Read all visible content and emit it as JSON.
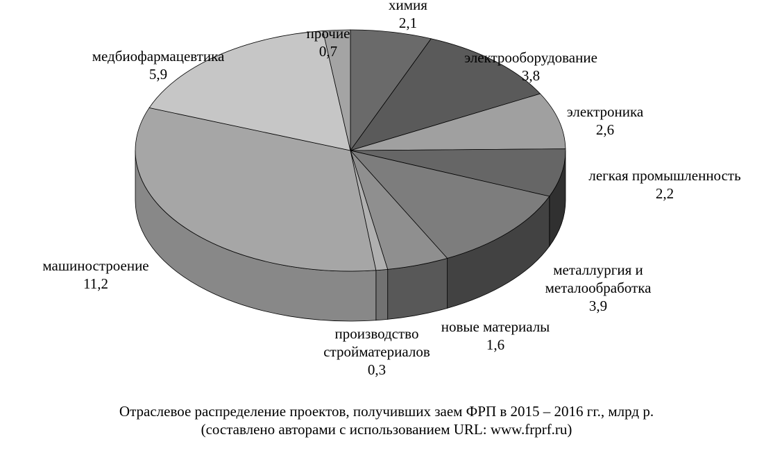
{
  "chart_data": {
    "type": "pie",
    "style": "3d",
    "unit": "млрд р.",
    "slices": [
      {
        "label": "химия",
        "value_text": "2,1",
        "value": 2.1,
        "color": "#6a6a6a"
      },
      {
        "label": "электрооборудование",
        "value_text": "3,8",
        "value": 3.8,
        "color": "#5a5a5a"
      },
      {
        "label": "электроника",
        "value_text": "2,6",
        "value": 2.6,
        "color": "#a0a0a0"
      },
      {
        "label": "легкая промышленность",
        "value_text": "2,2",
        "value": 2.2,
        "color": "#666666"
      },
      {
        "label": "металлургия и металообработка",
        "value_text": "3,9",
        "value": 3.9,
        "color": "#7d7d7d"
      },
      {
        "label": "новые материалы",
        "value_text": "1,6",
        "value": 1.6,
        "color": "#8f8f8f"
      },
      {
        "label": "производство строй­материалов",
        "value_text": "0,3",
        "value": 0.3,
        "color": "#b0b0b0"
      },
      {
        "label": "машиностроение",
        "value_text": "11,2",
        "value": 11.2,
        "color": "#a6a6a6"
      },
      {
        "label": "медбиофармацевтика",
        "value_text": "5,9",
        "value": 5.9,
        "color": "#c6c6c6"
      },
      {
        "label": "прочие",
        "value_text": "0,7",
        "value": 0.7,
        "color": "#a4a4a4"
      }
    ]
  },
  "caption": {
    "line1": "Отраслевое распределение проектов, получивших заем ФРП в 2015 – 2016 гг., млрд р.",
    "line2": "(составлено авторами с использованием URL: www.frprf.ru)"
  }
}
